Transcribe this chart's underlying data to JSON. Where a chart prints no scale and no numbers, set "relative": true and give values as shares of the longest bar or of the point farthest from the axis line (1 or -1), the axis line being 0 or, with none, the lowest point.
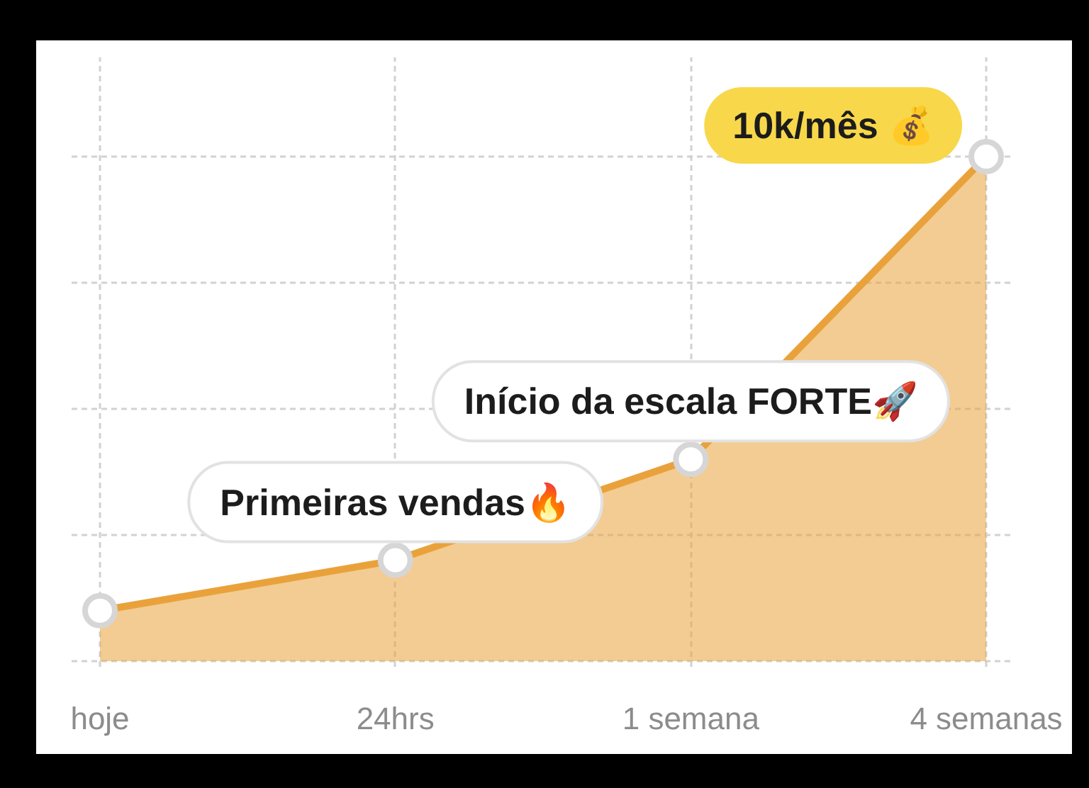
{
  "chart_data": {
    "type": "area",
    "relative": true,
    "categories": [
      "hoje",
      "24hrs",
      "1 semana",
      "4 semanas"
    ],
    "values": [
      0.1,
      0.2,
      0.4,
      1
    ],
    "color": "#e9a23b",
    "marker": "circle",
    "grid": true,
    "annotations": [
      {
        "text": "Primeiras vendas🔥",
        "x": "24hrs",
        "y": 0.2
      },
      {
        "text": "Início da escala FORTE🚀",
        "x": "1 semana",
        "y": 0.4
      },
      {
        "text": "10k/mês 💰",
        "x": "4 semanas",
        "y": 1
      }
    ]
  }
}
